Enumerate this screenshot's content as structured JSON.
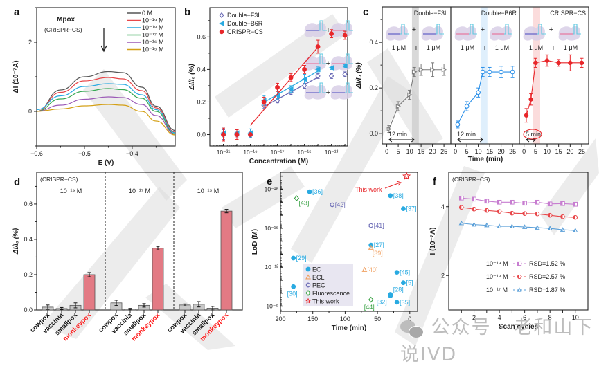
{
  "watermark": {
    "text": "公众号 · 老和山下说IVD",
    "icon": "wechat-icon"
  },
  "chart_data": [
    {
      "panel": "a",
      "type": "line",
      "title": "Mpox",
      "subtitle": "(CRISPR−CS)",
      "xlabel": "E (V)",
      "ylabel": "ΔI (10⁻⁷A)",
      "xlim": [
        -0.6,
        -0.31
      ],
      "ylim": [
        -1,
        3
      ],
      "xticks": [
        -0.6,
        -0.5,
        -0.4
      ],
      "xtick_labels": [
        "−0.6",
        "−0.5",
        "−0.4"
      ],
      "yticks": [
        0,
        2
      ],
      "ytick_labels": [
        "0",
        "2"
      ],
      "annotation": "down-arrow",
      "legend_position": "top-right",
      "x": [
        -0.6,
        -0.55,
        -0.5,
        -0.45,
        -0.42,
        -0.38,
        -0.35,
        -0.31
      ],
      "series": [
        {
          "name": "0 M",
          "color": "#555555",
          "values": [
            0.0,
            0.62,
            1.0,
            1.15,
            1.12,
            0.7,
            0.15,
            -0.55
          ]
        },
        {
          "name": "10⁻¹⁹ M",
          "color": "#e8474a",
          "values": [
            0.0,
            0.55,
            0.88,
            0.98,
            0.94,
            0.6,
            0.1,
            -0.6
          ]
        },
        {
          "name": "10⁻¹⁸ M",
          "color": "#29aae1",
          "values": [
            0.05,
            0.45,
            0.72,
            0.8,
            0.78,
            0.48,
            0.05,
            -0.62
          ]
        },
        {
          "name": "10⁻¹⁷ M",
          "color": "#35a853",
          "values": [
            0.0,
            0.36,
            0.58,
            0.66,
            0.63,
            0.38,
            0.0,
            -0.65
          ]
        },
        {
          "name": "10⁻¹⁶ M",
          "color": "#9b59b6",
          "values": [
            0.0,
            0.18,
            0.35,
            0.42,
            0.4,
            0.2,
            -0.12,
            -0.66
          ]
        },
        {
          "name": "10⁻¹⁵ M",
          "color": "#d4a017",
          "values": [
            0.0,
            0.07,
            0.16,
            0.2,
            0.18,
            0.0,
            -0.28,
            -0.68
          ]
        }
      ]
    },
    {
      "panel": "b",
      "type": "scatter",
      "xlabel": "Concentration (M)",
      "ylabel": "ΔI/I₀ (%)",
      "xscale": "log",
      "xlim_exp": [
        -22,
        -11.8
      ],
      "ylim": [
        -0.07,
        0.78
      ],
      "xtick_exps": [
        -21,
        -19,
        -17,
        -15,
        -13
      ],
      "xtick_labels": [
        "10⁻²¹",
        "10⁻¹⁹",
        "10⁻¹⁷",
        "10⁻¹⁵",
        "10⁻¹³"
      ],
      "yticks": [
        0.0,
        0.2,
        0.4,
        0.6
      ],
      "ytick_labels": [
        "0.0",
        "0.2",
        "0.4",
        "0.6"
      ],
      "legend_position": "top-left",
      "series": [
        {
          "name": "Double−F3L",
          "color": "#6a6ab5",
          "marker": "diamond",
          "x_exp": [
            -21,
            -20,
            -19,
            -18,
            -17,
            -16,
            -15,
            -14,
            -13,
            -12
          ],
          "values": [
            0.0,
            0.0,
            0.0,
            0.18,
            0.21,
            0.26,
            0.3,
            0.36,
            0.36,
            0.37
          ],
          "err": [
            0.03,
            0.02,
            0.02,
            0.02,
            0.015,
            0.015,
            0.015,
            0.015,
            0.015,
            0.015
          ],
          "fit_exp": [
            -18,
            -14
          ]
        },
        {
          "name": "Double−B6R",
          "color": "#29aae1",
          "marker": "triangle-left",
          "x_exp": [
            -21,
            -20,
            -19,
            -18,
            -17,
            -16,
            -15,
            -14,
            -13,
            -12
          ],
          "values": [
            0.01,
            0.01,
            0.01,
            0.21,
            0.24,
            0.28,
            0.34,
            0.4,
            0.41,
            0.42
          ],
          "err": [
            0.03,
            0.02,
            0.025,
            0.03,
            0.025,
            0.02,
            0.03,
            0.015,
            0.01,
            0.01
          ],
          "fit_exp": [
            -18,
            -14
          ]
        },
        {
          "name": "CRISPR−CS",
          "color": "#e8262a",
          "marker": "circle",
          "x_exp": [
            -21,
            -20,
            -19,
            -18,
            -17,
            -16,
            -15,
            -14,
            -13,
            -12
          ],
          "values": [
            0.0,
            0.0,
            0.0,
            0.2,
            0.29,
            0.35,
            0.4,
            0.54,
            0.62,
            0.61
          ],
          "err": [
            0.04,
            0.03,
            0.0,
            0.03,
            0.025,
            0.025,
            0.025,
            0.04,
            0.025,
            0.025
          ],
          "fit_exp": [
            -19,
            -14
          ]
        }
      ],
      "insets": [
        {
          "left": "blue",
          "right": "pink"
        },
        {
          "left": "pink",
          "right": "pink"
        },
        {
          "left": "blue",
          "right": "blue"
        }
      ]
    },
    {
      "panel": "c",
      "type": "line",
      "xlabel": "Time (min)",
      "ylabel": "ΔI/I₀ (%)",
      "xlim": [
        -2,
        28
      ],
      "ylim": [
        -0.045,
        0.555
      ],
      "xticks": [
        0,
        5,
        10,
        15,
        20,
        25
      ],
      "yticks": [
        0.0,
        0.2,
        0.4
      ],
      "ytick_labels": [
        "0.0",
        "0.2",
        "0.4"
      ],
      "concentration_label": "1 μM",
      "plus": "+",
      "subplots": [
        {
          "name": "Double−F3L",
          "color": "#7a7a7a",
          "marker": "triangle-right",
          "highlight_color": "#cccccc",
          "highlight_range": [
            11,
            14
          ],
          "arrow_range": [
            1,
            12
          ],
          "annotation": "12 min",
          "circled": false,
          "x": [
            1,
            5,
            10,
            12,
            15,
            20,
            25
          ],
          "values": [
            0.02,
            0.12,
            0.17,
            0.27,
            0.28,
            0.28,
            0.28
          ],
          "err": [
            0.015,
            0.02,
            0.02,
            0.02,
            0.025,
            0.03,
            0.025
          ],
          "insets": {
            "left": "blue",
            "right": "blue"
          }
        },
        {
          "name": "Double−B6R",
          "color": "#2a8fe8",
          "marker": "circle-open",
          "highlight_color": "#d4e9fb",
          "highlight_range": [
            11,
            14
          ],
          "arrow_range": [
            1,
            12
          ],
          "annotation": "12 min",
          "circled": false,
          "x": [
            1,
            5,
            10,
            12,
            15,
            20,
            25
          ],
          "values": [
            0.04,
            0.12,
            0.18,
            0.27,
            0.27,
            0.27,
            0.27
          ],
          "err": [
            0.015,
            0.02,
            0.02,
            0.02,
            0.02,
            0.025,
            0.025
          ],
          "insets": {
            "left": "pink",
            "right": "pink"
          }
        },
        {
          "name": "CRISPR−CS",
          "color": "#e8262a",
          "marker": "circle",
          "highlight_color": "#f9d0d0",
          "highlight_range": [
            4,
            7
          ],
          "arrow_range": [
            1,
            5
          ],
          "annotation": "5 min",
          "circled": true,
          "x": [
            1,
            3,
            5,
            10,
            15,
            20,
            25
          ],
          "values": [
            0.08,
            0.15,
            0.31,
            0.32,
            0.31,
            0.31,
            0.31
          ],
          "err": [
            0.03,
            0.025,
            0.02,
            0.025,
            0.015,
            0.035,
            0.02
          ],
          "insets": {
            "left": "blue",
            "right": "pink"
          }
        }
      ]
    },
    {
      "panel": "d",
      "type": "bar",
      "subtitle": "(CRISPR−CS)",
      "ylabel": "ΔI/I₀ (%)",
      "ylim": [
        0,
        0.78
      ],
      "yticks": [
        0.0,
        0.2,
        0.4,
        0.6
      ],
      "ytick_labels": [
        "0.0",
        "0.2",
        "0.4",
        "0.6"
      ],
      "categories": [
        "cowpox",
        "vaccinia",
        "smallpox",
        "monkeypox"
      ],
      "highlight_category": "monkeypox",
      "colors": {
        "normal": "#c8c8c8",
        "highlight": "#e37a84",
        "highlight_label": "#ff1a1a"
      },
      "groups": [
        {
          "label": "10⁻¹⁹ M",
          "values": [
            0.016,
            0.008,
            0.026,
            0.2
          ],
          "err": [
            0.012,
            0.006,
            0.014,
            0.012
          ]
        },
        {
          "label": "10⁻¹⁷ M",
          "values": [
            0.04,
            0.005,
            0.026,
            0.35
          ],
          "err": [
            0.015,
            0.004,
            0.01,
            0.01
          ]
        },
        {
          "label": "10⁻¹⁵ M",
          "values": [
            0.028,
            0.032,
            0.01,
            0.56
          ],
          "err": [
            0.006,
            0.015,
            0.01,
            0.01
          ]
        }
      ]
    },
    {
      "panel": "e",
      "type": "scatter",
      "xlabel": "Time (min)",
      "ylabel": "LoD (M)",
      "yscale": "log",
      "xlim": [
        200,
        -12
      ],
      "ylim_exp": [
        -8.6,
        -19.3
      ],
      "xticks": [
        200,
        150,
        100,
        50,
        0
      ],
      "ytick_exps": [
        -18,
        -15,
        -12,
        -9
      ],
      "ytick_labels": [
        "10⁻¹⁸",
        "10⁻¹⁵",
        "10⁻¹²",
        "10⁻⁹"
      ],
      "legend_position": "bottom-center",
      "legend": [
        {
          "name": "EC",
          "color": "#29aae1",
          "marker": "circle"
        },
        {
          "name": "ECL",
          "color": "#f0a060",
          "marker": "triangle"
        },
        {
          "name": "PEC",
          "color": "#6a6ab5",
          "marker": "hexagon"
        },
        {
          "name": "Fluorescence",
          "color": "#35a040",
          "marker": "diamond"
        },
        {
          "name": "This work",
          "color": "#e8262a",
          "marker": "star"
        }
      ],
      "points": [
        {
          "label": "[36]",
          "type": "EC",
          "x": 155,
          "lod_exp": -17.8
        },
        {
          "label": "[43]",
          "type": "Fluorescence",
          "x": 175,
          "lod_exp": -17.3
        },
        {
          "label": "[42]",
          "type": "PEC",
          "x": 120,
          "lod_exp": -16.8
        },
        {
          "label": "[38]",
          "type": "EC",
          "x": 30,
          "lod_exp": -17.5
        },
        {
          "label": "[37]",
          "type": "EC",
          "x": 10,
          "lod_exp": -16.5
        },
        {
          "label": "[41]",
          "type": "PEC",
          "x": 60,
          "lod_exp": -15.2
        },
        {
          "label": "[27]",
          "type": "EC",
          "x": 60,
          "lod_exp": -13.7
        },
        {
          "label": "[39]",
          "type": "ECL",
          "x": 60,
          "lod_exp": -13.5
        },
        {
          "label": "[29]",
          "type": "EC",
          "x": 180,
          "lod_exp": -12.7
        },
        {
          "label": "[40]",
          "type": "ECL",
          "x": 70,
          "lod_exp": -11.8
        },
        {
          "label": "[45]",
          "type": "EC",
          "x": 20,
          "lod_exp": -11.6
        },
        {
          "label": "[5]",
          "type": "EC",
          "x": 10,
          "lod_exp": -10.8
        },
        {
          "label": "[30]",
          "type": "EC",
          "x": 180,
          "lod_exp": -10.5
        },
        {
          "label": "[28]",
          "type": "EC",
          "x": 30,
          "lod_exp": -9.9
        },
        {
          "label": "[32]",
          "type": "EC",
          "x": 30,
          "lod_exp": -9.8
        },
        {
          "label": "[35]",
          "type": "EC",
          "x": 20,
          "lod_exp": -9.3
        },
        {
          "label": "[44]",
          "type": "Fluorescence",
          "x": 60,
          "lod_exp": -9.5
        },
        {
          "label": "This work",
          "type": "This work",
          "x": 5,
          "lod_exp": -19.0
        }
      ],
      "annotation": "This work"
    },
    {
      "panel": "f",
      "type": "line",
      "subtitle": "(CRISPR−CS)",
      "xlabel": "Scan cycles",
      "ylabel": "I (10⁻⁷A)",
      "xlim": [
        0,
        11
      ],
      "ylim": [
        1,
        5
      ],
      "xticks": [
        1,
        2,
        3,
        4,
        5,
        6,
        7,
        8,
        9,
        10
      ],
      "xtick_labels": [
        "",
        "2",
        "",
        "4",
        "",
        "6",
        "",
        "8",
        "",
        "10"
      ],
      "yticks": [
        2,
        3,
        4
      ],
      "ytick_labels": [
        "2",
        "",
        "4"
      ],
      "x": [
        1,
        2,
        3,
        4,
        5,
        6,
        7,
        8,
        9,
        10
      ],
      "series": [
        {
          "name": "10⁻¹⁹ M",
          "rsd": "RSD=1.52 %",
          "color": "#c77dd0",
          "marker": "square-half",
          "values": [
            4.25,
            4.22,
            4.16,
            4.13,
            4.13,
            4.1,
            4.13,
            4.08,
            4.09,
            4.07
          ]
        },
        {
          "name": "10⁻¹⁸ M",
          "rsd": "RSD=2.57 %",
          "color": "#e8474a",
          "marker": "circle-half",
          "values": [
            3.98,
            3.93,
            3.89,
            3.86,
            3.81,
            3.8,
            3.79,
            3.75,
            3.71,
            3.69
          ]
        },
        {
          "name": "10⁻¹⁷ M",
          "rsd": "RSD=1.87 %",
          "color": "#5a9fd8",
          "marker": "triangle-half",
          "values": [
            3.52,
            3.48,
            3.46,
            3.43,
            3.43,
            3.41,
            3.39,
            3.37,
            3.33,
            3.31
          ]
        }
      ]
    }
  ],
  "panel_labels": [
    "a",
    "b",
    "c",
    "d",
    "e",
    "f"
  ]
}
